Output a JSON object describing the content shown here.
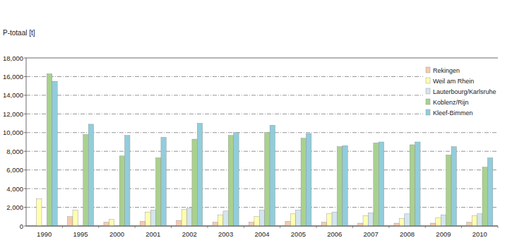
{
  "chart_data": {
    "type": "bar",
    "y_label": "P-totaal [t]",
    "categories": [
      "1990",
      "1995",
      "2000",
      "2001",
      "2002",
      "2003",
      "2004",
      "2005",
      "2006",
      "2007",
      "2008",
      "2009",
      "2010"
    ],
    "series": [
      {
        "name": "Rekingen",
        "color": "#f7c9ad",
        "values": [
          null,
          1000,
          400,
          500,
          600,
          400,
          400,
          500,
          400,
          300,
          300,
          300,
          400
        ]
      },
      {
        "name": "Weil am Rhein",
        "color": "#ffffb0",
        "values": [
          2900,
          1700,
          700,
          1500,
          1800,
          1200,
          1000,
          1300,
          1300,
          1100,
          800,
          900,
          1100
        ]
      },
      {
        "name": "Lauterbourg/Karlsruhe",
        "color": "#d3e5ee",
        "values": [
          null,
          null,
          null,
          1700,
          1900,
          1600,
          1700,
          1700,
          1500,
          1400,
          1300,
          1200,
          1300
        ]
      },
      {
        "name": "Koblenz/Rijn",
        "color": "#a9d18e",
        "values": [
          16300,
          9800,
          7500,
          7300,
          9300,
          9700,
          10000,
          9400,
          8500,
          8900,
          8700,
          7600,
          6300
        ]
      },
      {
        "name": "Kleef-Bimmen",
        "color": "#92cddc",
        "values": [
          15500,
          10900,
          9700,
          9500,
          11000,
          10000,
          10800,
          9900,
          8600,
          9000,
          9000,
          8500,
          7300
        ]
      }
    ],
    "ylim": [
      0,
      18000
    ],
    "yticks": [
      0,
      {
        "value": 2000,
        "label": "2,000"
      },
      {
        "value": 4000,
        "label": "4,000"
      },
      {
        "value": 6000,
        "label": "6,000"
      },
      {
        "value": 8000,
        "label": "8,000"
      },
      {
        "value": 10000,
        "label": "10,000"
      },
      {
        "value": 12000,
        "label": "12,000"
      },
      {
        "value": 14000,
        "label": "14,000"
      },
      {
        "value": 16000,
        "label": "16,000"
      },
      {
        "value": 18000,
        "label": "18,000"
      }
    ],
    "grid": true,
    "legend": "top-right"
  }
}
